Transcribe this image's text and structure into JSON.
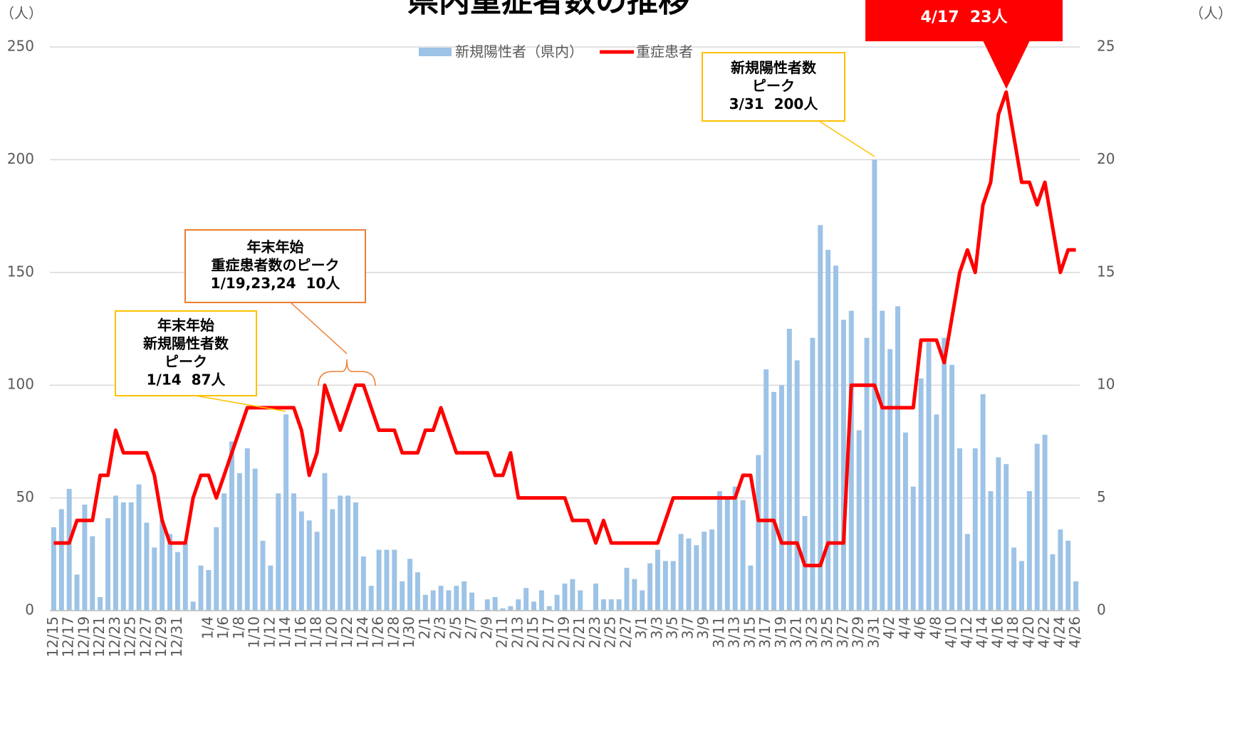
{
  "chart_data": {
    "type": "bar_line",
    "title": "県内重症者数の推移",
    "y_unit": "（人）",
    "y2_unit": "（人）",
    "categories": [
      "12/15",
      null,
      "12/17",
      null,
      "12/19",
      null,
      "12/21",
      null,
      "12/23",
      null,
      "12/25",
      null,
      "12/27",
      null,
      "12/29",
      null,
      "12/31",
      null,
      null,
      null,
      "1/4",
      null,
      "1/6",
      null,
      "1/8",
      null,
      "1/10",
      null,
      "1/12",
      null,
      "1/14",
      null,
      "1/16",
      null,
      "1/18",
      null,
      "1/20",
      null,
      "1/22",
      null,
      "1/24",
      null,
      "1/26",
      null,
      "1/28",
      null,
      "1/30",
      null,
      "2/1",
      null,
      "2/3",
      null,
      "2/5",
      null,
      "2/7",
      null,
      "2/9",
      null,
      "2/11",
      null,
      "2/13",
      null,
      "2/15",
      null,
      "2/17",
      null,
      "2/19",
      null,
      "2/21",
      null,
      "2/23",
      null,
      "2/25",
      null,
      "2/27",
      null,
      "3/1",
      null,
      "3/3",
      null,
      "3/5",
      null,
      "3/7",
      null,
      "3/9",
      null,
      "3/11",
      null,
      "3/13",
      null,
      "3/15",
      null,
      "3/17",
      null,
      "3/19",
      null,
      "3/21",
      null,
      "3/23",
      null,
      "3/25",
      null,
      "3/27",
      null,
      "3/29",
      null,
      "3/31",
      null,
      "4/2",
      null,
      "4/4",
      null,
      "4/6",
      null,
      "4/8",
      null,
      "4/10",
      null,
      "4/12",
      null,
      "4/14",
      null,
      "4/16",
      null,
      "4/18",
      null,
      "4/20",
      null,
      "4/22",
      null,
      "4/24",
      null,
      "4/26"
    ],
    "series": [
      {
        "name": "新規陽性者（県内）",
        "kind": "bar",
        "color": "#9dc3e6",
        "values": [
          37,
          45,
          54,
          16,
          47,
          33,
          6,
          41,
          51,
          48,
          48,
          56,
          39,
          28,
          40,
          34,
          26,
          30,
          4,
          20,
          18,
          37,
          52,
          75,
          61,
          72,
          63,
          31,
          20,
          52,
          87,
          52,
          44,
          40,
          35,
          61,
          45,
          51,
          51,
          48,
          24,
          11,
          27,
          27,
          27,
          13,
          23,
          17,
          7,
          9,
          11,
          9,
          11,
          13,
          8,
          0,
          5,
          6,
          1,
          2,
          5,
          10,
          4,
          9,
          2,
          7,
          12,
          14,
          9,
          0,
          12,
          5,
          5,
          5,
          19,
          14,
          9,
          21,
          27,
          22,
          22,
          34,
          32,
          29,
          35,
          36,
          53,
          50,
          55,
          49,
          20,
          69,
          107,
          97,
          100,
          125,
          111,
          42,
          121,
          171,
          160,
          153,
          129,
          133,
          80,
          121,
          200,
          133,
          116,
          135,
          79,
          55,
          103,
          119,
          87,
          121,
          109,
          72,
          34,
          72,
          96,
          53,
          68,
          65,
          28,
          22,
          53,
          74,
          78,
          25,
          36,
          31,
          13
        ]
      },
      {
        "name": "重症患者",
        "kind": "line",
        "axis": "y2",
        "color": "#ff0000",
        "values": [
          3,
          3,
          3,
          4,
          4,
          4,
          6,
          6,
          8,
          7,
          7,
          7,
          7,
          6,
          4,
          3,
          3,
          3,
          5,
          6,
          6,
          5,
          6,
          7,
          8,
          9,
          9,
          9,
          9,
          9,
          9,
          9,
          8,
          6,
          7,
          10,
          9,
          8,
          9,
          10,
          10,
          9,
          8,
          8,
          8,
          7,
          7,
          7,
          8,
          8,
          9,
          8,
          7,
          7,
          7,
          7,
          7,
          6,
          6,
          7,
          5,
          5,
          5,
          5,
          5,
          5,
          5,
          4,
          4,
          4,
          3,
          4,
          3,
          3,
          3,
          3,
          3,
          3,
          3,
          4,
          5,
          5,
          5,
          5,
          5,
          5,
          5,
          5,
          5,
          6,
          6,
          4,
          4,
          4,
          3,
          3,
          3,
          2,
          2,
          2,
          3,
          3,
          3,
          10,
          10,
          10,
          10,
          9,
          9,
          9,
          9,
          9,
          12,
          12,
          12,
          11,
          13,
          15,
          16,
          15,
          18,
          19,
          22,
          23,
          21,
          19,
          19,
          18,
          19,
          17,
          15,
          16,
          16
        ]
      }
    ],
    "ylim": [
      0,
      250
    ],
    "yticks": [
      0,
      50,
      100,
      150,
      200,
      250
    ],
    "y2lim": [
      0,
      25
    ],
    "y2ticks": [
      0,
      5,
      10,
      15,
      20,
      25
    ],
    "grid": true,
    "legend": "top",
    "annotations": [
      {
        "lines": [
          "年末年始",
          "新規陽性者数",
          "ピーク",
          "1/14  87人"
        ]
      },
      {
        "lines": [
          "年末年始",
          "重症患者数のピーク",
          "1/19,23,24  10人"
        ]
      },
      {
        "lines": [
          "新規陽性者数",
          "ピーク",
          "3/31  200人"
        ]
      },
      {
        "lines": [
          "4/17  23人"
        ]
      }
    ]
  }
}
